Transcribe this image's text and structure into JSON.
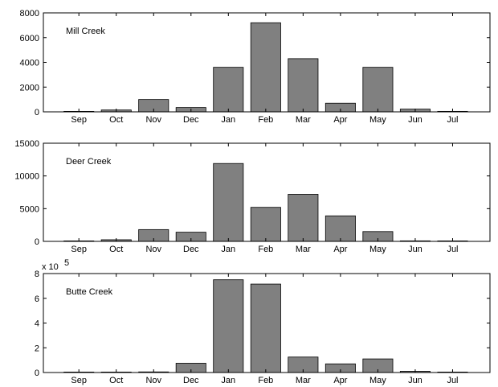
{
  "chart_data": [
    {
      "type": "bar",
      "title": "",
      "annotation": "Mill Creek",
      "categories": [
        "Sep",
        "Oct",
        "Nov",
        "Dec",
        "Jan",
        "Feb",
        "Mar",
        "Apr",
        "May",
        "Jun",
        "Jul"
      ],
      "values": [
        30,
        150,
        1000,
        350,
        3600,
        7200,
        4300,
        700,
        3600,
        220,
        40
      ],
      "ylim": [
        0,
        8000
      ],
      "yticks": [
        "0",
        "2000",
        "4000",
        "6000",
        "8000"
      ],
      "ytick_values": [
        0,
        2000,
        4000,
        6000,
        8000
      ],
      "exponent_label": "",
      "bar_color": "#808080"
    },
    {
      "type": "bar",
      "title": "",
      "annotation": "Deer Creek",
      "categories": [
        "Sep",
        "Oct",
        "Nov",
        "Dec",
        "Jan",
        "Feb",
        "Mar",
        "Apr",
        "May",
        "Jun",
        "Jul"
      ],
      "values": [
        60,
        250,
        1800,
        1400,
        11900,
        5200,
        7200,
        3900,
        1500,
        80,
        30
      ],
      "ylim": [
        0,
        15000
      ],
      "yticks": [
        "0",
        "5000",
        "10000",
        "15000"
      ],
      "ytick_values": [
        0,
        5000,
        10000,
        15000
      ],
      "exponent_label": "",
      "bar_color": "#808080"
    },
    {
      "type": "bar",
      "title": "",
      "annotation": "Butte Creek",
      "categories": [
        "Sep",
        "Oct",
        "Nov",
        "Dec",
        "Jan",
        "Feb",
        "Mar",
        "Apr",
        "May",
        "Jun",
        "Jul"
      ],
      "values": [
        0.02,
        0.02,
        0.05,
        0.75,
        7.5,
        7.15,
        1.25,
        0.7,
        1.1,
        0.1,
        0.02
      ],
      "ylim": [
        0,
        8
      ],
      "yticks": [
        "0",
        "2",
        "4",
        "6",
        "8"
      ],
      "ytick_values": [
        0,
        2,
        4,
        6,
        8
      ],
      "exponent_label": "x 10",
      "exponent_power": "5",
      "bar_color": "#808080"
    }
  ]
}
